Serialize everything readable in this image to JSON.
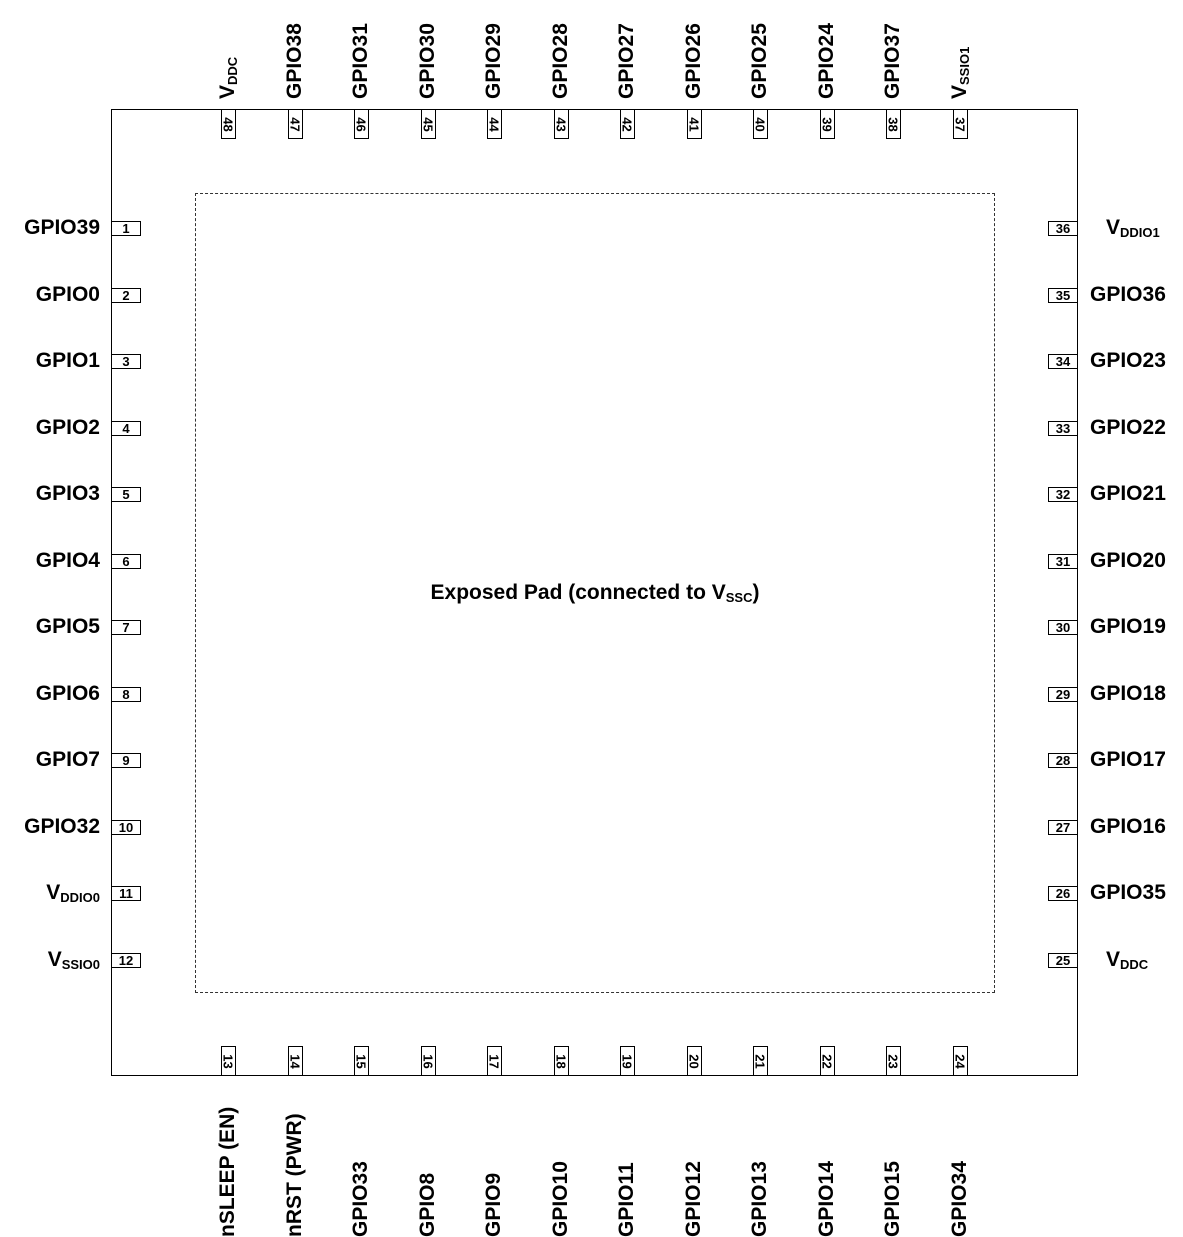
{
  "center_label": {
    "text": "Exposed Pad (connected to V",
    "sub": "SSC",
    "close": ")"
  },
  "left_pins": [
    {
      "num": "1",
      "name": "GPIO39"
    },
    {
      "num": "2",
      "name": "GPIO0"
    },
    {
      "num": "3",
      "name": "GPIO1"
    },
    {
      "num": "4",
      "name": "GPIO2"
    },
    {
      "num": "5",
      "name": "GPIO3"
    },
    {
      "num": "6",
      "name": "GPIO4"
    },
    {
      "num": "7",
      "name": "GPIO5"
    },
    {
      "num": "8",
      "name": "GPIO6"
    },
    {
      "num": "9",
      "name": "GPIO7"
    },
    {
      "num": "10",
      "name": "GPIO32"
    },
    {
      "num": "11",
      "name": "V",
      "sub": "DDIO0"
    },
    {
      "num": "12",
      "name": "V",
      "sub": "SSIO0"
    }
  ],
  "bottom_pins": [
    {
      "num": "13",
      "name": "nSLEEP (EN)"
    },
    {
      "num": "14",
      "name": "nRST (PWR)"
    },
    {
      "num": "15",
      "name": "GPIO33"
    },
    {
      "num": "16",
      "name": "GPIO8"
    },
    {
      "num": "17",
      "name": "GPIO9"
    },
    {
      "num": "18",
      "name": "GPIO10"
    },
    {
      "num": "19",
      "name": "GPIO11"
    },
    {
      "num": "20",
      "name": "GPIO12"
    },
    {
      "num": "21",
      "name": "GPIO13"
    },
    {
      "num": "22",
      "name": "GPIO14"
    },
    {
      "num": "23",
      "name": "GPIO15"
    },
    {
      "num": "24",
      "name": "GPIO34"
    }
  ],
  "right_pins": [
    {
      "num": "36",
      "name": "V",
      "sub": "DDIO1"
    },
    {
      "num": "35",
      "name": "GPIO36"
    },
    {
      "num": "34",
      "name": "GPIO23"
    },
    {
      "num": "33",
      "name": "GPIO22"
    },
    {
      "num": "32",
      "name": "GPIO21"
    },
    {
      "num": "31",
      "name": "GPIO20"
    },
    {
      "num": "30",
      "name": "GPIO19"
    },
    {
      "num": "29",
      "name": "GPIO18"
    },
    {
      "num": "28",
      "name": "GPIO17"
    },
    {
      "num": "27",
      "name": "GPIO16"
    },
    {
      "num": "26",
      "name": "GPIO35"
    },
    {
      "num": "25",
      "name": "V",
      "sub": "DDC"
    }
  ],
  "top_pins": [
    {
      "num": "48",
      "name": "V",
      "sub": "DDC"
    },
    {
      "num": "47",
      "name": "GPIO38"
    },
    {
      "num": "46",
      "name": "GPIO31"
    },
    {
      "num": "45",
      "name": "GPIO30"
    },
    {
      "num": "44",
      "name": "GPIO29"
    },
    {
      "num": "43",
      "name": "GPIO28"
    },
    {
      "num": "42",
      "name": "GPIO27"
    },
    {
      "num": "41",
      "name": "GPIO26"
    },
    {
      "num": "40",
      "name": "GPIO25"
    },
    {
      "num": "39",
      "name": "GPIO24"
    },
    {
      "num": "38",
      "name": "GPIO37"
    },
    {
      "num": "37",
      "name": "V",
      "sub": "SSIO1"
    }
  ]
}
